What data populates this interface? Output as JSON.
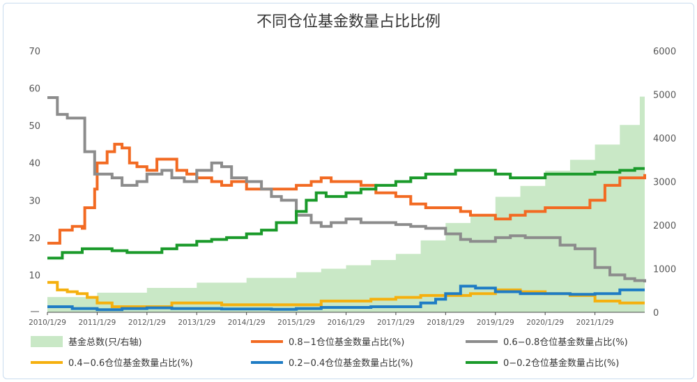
{
  "chart_data": {
    "type": "line",
    "title": "不同仓位基金数量占比比例",
    "y_left": {
      "ylim": [
        0,
        70
      ],
      "ticks": [
        "",
        "10",
        "20",
        "30",
        "40",
        "50",
        "60",
        "70"
      ]
    },
    "y_right": {
      "ylim": [
        0,
        6000
      ],
      "ticks": [
        "0",
        "1000",
        "2000",
        "3000",
        "4000",
        "5000",
        "6000"
      ]
    },
    "x_ticks": [
      "2010/1/29",
      "2011/1/29",
      "2012/1/29",
      "2013/1/29",
      "2014/1/29",
      "2015/1/29",
      "2016/1/29",
      "2017/1/29",
      "2018/1/29",
      "2019/1/29",
      "2020/1/29",
      "2021/1/29"
    ],
    "x_range": [
      2010.0,
      2022.0
    ],
    "colors": {
      "area": "#c9e8c6",
      "s08_1": "#f26a22",
      "s06_08": "#8c8c8c",
      "s04_06": "#f5b00e",
      "s02_04": "#1f7cc4",
      "s00_02": "#1a9a2a"
    },
    "area_series": {
      "name": "基金总数(只/右轴)",
      "x": [
        2010.0,
        2011.0,
        2012.0,
        2013.0,
        2014.0,
        2015.0,
        2015.5,
        2016.0,
        2016.5,
        2017.0,
        2017.5,
        2018.0,
        2018.5,
        2019.0,
        2019.5,
        2020.0,
        2020.5,
        2021.0,
        2021.5,
        2021.9,
        2022.0
      ],
      "y": [
        350,
        450,
        560,
        680,
        790,
        920,
        1000,
        1080,
        1200,
        1340,
        1650,
        2050,
        2250,
        2650,
        2900,
        3250,
        3500,
        3850,
        4300,
        4950,
        5150
      ]
    },
    "series": [
      {
        "key": "s08_1",
        "name": "0.8-1仓位基金数量占比(%)",
        "x": [
          2010.0,
          2010.25,
          2010.5,
          2010.7,
          2010.75,
          2010.95,
          2011.0,
          2011.2,
          2011.35,
          2011.5,
          2011.65,
          2011.8,
          2012.0,
          2012.2,
          2012.45,
          2012.6,
          2012.7,
          2012.8,
          2013.0,
          2013.3,
          2013.5,
          2013.7,
          2014.0,
          2014.3,
          2014.6,
          2015.0,
          2015.3,
          2015.5,
          2015.7,
          2016.0,
          2016.3,
          2016.6,
          2017.0,
          2017.3,
          2017.6,
          2018.0,
          2018.3,
          2018.5,
          2019.0,
          2019.3,
          2019.6,
          2020.0,
          2020.3,
          2020.6,
          2020.9,
          2021.2,
          2021.5,
          2021.8,
          2022.0
        ],
        "y": [
          18.5,
          22,
          23,
          22.5,
          28,
          33,
          40,
          43,
          45,
          44,
          40,
          39,
          38,
          41,
          41,
          38,
          38,
          37,
          36,
          35,
          34,
          35,
          33,
          33,
          33,
          34,
          35,
          36,
          35,
          35,
          34,
          32,
          31,
          29,
          28,
          28,
          27,
          26,
          25,
          26,
          27,
          28,
          28,
          28,
          30,
          34,
          36,
          36,
          37
        ]
      },
      {
        "key": "s06_08",
        "name": "0.6-0.8仓位基金数量占比(%)",
        "x": [
          2010.0,
          2010.2,
          2010.4,
          2010.7,
          2010.75,
          2010.95,
          2011.0,
          2011.3,
          2011.5,
          2011.8,
          2012.0,
          2012.3,
          2012.5,
          2012.75,
          2013.0,
          2013.3,
          2013.5,
          2013.7,
          2014.0,
          2014.3,
          2014.5,
          2014.7,
          2015.0,
          2015.3,
          2015.5,
          2015.7,
          2016.0,
          2016.3,
          2016.6,
          2017.0,
          2017.3,
          2017.6,
          2018.0,
          2018.3,
          2018.5,
          2019.0,
          2019.3,
          2019.6,
          2020.0,
          2020.3,
          2020.6,
          2021.0,
          2021.3,
          2021.6,
          2021.8,
          2022.0
        ],
        "y": [
          57.5,
          53,
          52,
          52,
          43,
          37,
          37,
          36,
          34,
          35,
          37,
          38,
          36,
          35,
          38,
          40,
          39,
          36,
          35,
          33,
          31,
          30,
          26,
          24,
          23,
          24,
          25,
          24,
          24,
          23.5,
          23,
          22.5,
          21,
          19.5,
          19,
          20,
          20.5,
          20,
          20,
          18,
          17,
          12,
          10,
          9,
          8.5,
          8
        ]
      },
      {
        "key": "s04_06",
        "name": "0.4-0.6仓位基金数量占比(%)",
        "x": [
          2010.0,
          2010.2,
          2010.4,
          2010.6,
          2010.8,
          2011.0,
          2011.3,
          2011.6,
          2012.0,
          2012.5,
          2013.0,
          2013.5,
          2014.0,
          2014.5,
          2015.0,
          2015.5,
          2016.0,
          2016.5,
          2017.0,
          2017.5,
          2018.0,
          2018.5,
          2019.0,
          2019.5,
          2020.0,
          2020.5,
          2021.0,
          2021.5,
          2022.0
        ],
        "y": [
          8,
          6,
          5.5,
          5,
          4,
          2.5,
          1.5,
          1.5,
          1.5,
          2.5,
          2.5,
          2,
          2,
          2,
          2,
          3,
          3,
          3.5,
          4,
          4.5,
          4.5,
          5,
          6,
          5.5,
          5,
          4.5,
          3,
          2.5,
          2.5
        ]
      },
      {
        "key": "s02_04",
        "name": "0.2-0.4仓位基金数量占比(%)",
        "x": [
          2010.0,
          2010.5,
          2011.0,
          2011.5,
          2012.0,
          2012.5,
          2013.0,
          2013.5,
          2014.0,
          2014.5,
          2015.0,
          2015.5,
          2016.0,
          2016.5,
          2017.0,
          2017.5,
          2017.8,
          2018.0,
          2018.3,
          2018.6,
          2019.0,
          2019.5,
          2020.0,
          2020.5,
          2021.0,
          2021.5,
          2022.0
        ],
        "y": [
          1.5,
          1,
          0.7,
          1,
          1.2,
          1,
          1,
          0.9,
          0.9,
          0.8,
          1,
          1.3,
          1.3,
          1.5,
          1.5,
          2.5,
          3.5,
          5,
          7,
          6.5,
          5.5,
          5,
          5,
          4.8,
          5,
          6,
          6
        ]
      },
      {
        "key": "s00_02",
        "name": "0-0.2仓位基金数量占比(%)",
        "x": [
          2010.0,
          2010.3,
          2010.7,
          2011.0,
          2011.3,
          2011.6,
          2012.0,
          2012.3,
          2012.6,
          2013.0,
          2013.3,
          2013.6,
          2014.0,
          2014.3,
          2014.6,
          2015.0,
          2015.2,
          2015.4,
          2015.6,
          2016.0,
          2016.3,
          2016.6,
          2017.0,
          2017.3,
          2017.6,
          2018.0,
          2018.2,
          2018.5,
          2019.0,
          2019.3,
          2019.6,
          2020.0,
          2020.5,
          2021.0,
          2021.5,
          2021.8,
          2022.0
        ],
        "y": [
          14.5,
          16,
          17,
          17,
          16.5,
          16,
          16,
          17,
          18,
          19,
          19.5,
          20,
          21,
          22,
          24,
          27,
          30,
          32,
          31,
          32,
          33,
          34,
          35,
          36,
          37,
          37,
          38,
          38,
          37,
          36,
          36,
          37,
          37,
          37.5,
          38,
          38.5,
          38.5
        ]
      }
    ]
  },
  "legend": [
    {
      "key": "area",
      "label": "基金总数(只/右轴)",
      "kind": "area"
    },
    {
      "key": "s08_1",
      "label": "0.8−1仓位基金数量占比(%)",
      "kind": "line"
    },
    {
      "key": "s06_08",
      "label": "0.6−0.8仓位基金数量占比(%)",
      "kind": "line"
    },
    {
      "key": "s04_06",
      "label": "0.4−0.6仓位基金数量占比(%)",
      "kind": "line"
    },
    {
      "key": "s02_04",
      "label": "0.2−0.4仓位基金数量占比(%)",
      "kind": "line"
    },
    {
      "key": "s00_02",
      "label": "0−0.2仓位基金数量占比(%)",
      "kind": "line"
    }
  ]
}
